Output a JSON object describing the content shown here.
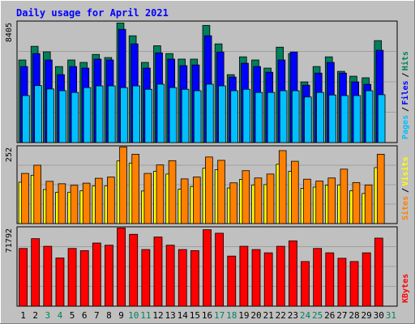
{
  "title": "Daily usage for April 2021",
  "colors": {
    "background": "#c0c0c0",
    "plot_background": "#c0c0c0",
    "title": "#0000ff",
    "hits": "#00805c",
    "files": "#0000ff",
    "pages": "#00c0ff",
    "visits": "#ffff00",
    "sites": "#ff8000",
    "kbytes": "#ff0000",
    "weekday_label": "#000000",
    "weekend_label": "#00805c"
  },
  "chart_data": [
    {
      "type": "bar",
      "panel": "hits-files-pages",
      "categories": [
        "1",
        "2",
        "3",
        "4",
        "5",
        "6",
        "7",
        "8",
        "9",
        "10",
        "11",
        "12",
        "13",
        "14",
        "15",
        "16",
        "17",
        "18",
        "19",
        "20",
        "21",
        "22",
        "23",
        "24",
        "25",
        "26",
        "27",
        "28",
        "29",
        "30",
        "31"
      ],
      "weekend_days": [
        "3",
        "4",
        "10",
        "11",
        "17",
        "18",
        "24",
        "25",
        "31"
      ],
      "max_label": "8405",
      "ylim": [
        0,
        8405
      ],
      "legend": [
        {
          "label": "Pages",
          "color": "#00c0ff"
        },
        {
          "label": "/",
          "color": "#000000"
        },
        {
          "label": "Files",
          "color": "#0000ff"
        },
        {
          "label": "/",
          "color": "#000000"
        },
        {
          "label": "Hits",
          "color": "#00805c"
        }
      ],
      "series": [
        {
          "name": "Hits",
          "values": [
            5800,
            6760,
            6370,
            5340,
            5800,
            5630,
            6190,
            5970,
            8400,
            7500,
            5630,
            6800,
            6250,
            5860,
            5860,
            8230,
            6930,
            4770,
            6020,
            5800,
            5230,
            6700,
            6250,
            4260,
            5340,
            6020,
            5000,
            4660,
            4550,
            7160,
            0
          ]
        },
        {
          "name": "Files",
          "values": [
            5340,
            6250,
            5800,
            4770,
            5340,
            5230,
            5860,
            5800,
            7950,
            6930,
            5230,
            6300,
            5860,
            5400,
            5450,
            7500,
            6360,
            4600,
            5570,
            5340,
            4940,
            5800,
            6360,
            4030,
            4880,
            5630,
            4880,
            4260,
            4090,
            6480,
            0
          ]
        },
        {
          "name": "Pages",
          "values": [
            3300,
            4000,
            3760,
            3640,
            3520,
            3860,
            3980,
            3980,
            3860,
            3980,
            3740,
            4100,
            3860,
            3740,
            3640,
            4100,
            3980,
            3640,
            3740,
            3520,
            3520,
            3640,
            3640,
            3200,
            3520,
            3340,
            3300,
            3300,
            3640,
            3360,
            0
          ]
        }
      ]
    },
    {
      "type": "bar",
      "panel": "visits-sites",
      "categories": [
        "1",
        "2",
        "3",
        "4",
        "5",
        "6",
        "7",
        "8",
        "9",
        "10",
        "11",
        "12",
        "13",
        "14",
        "15",
        "16",
        "17",
        "18",
        "19",
        "20",
        "21",
        "22",
        "23",
        "24",
        "25",
        "26",
        "27",
        "28",
        "29",
        "30",
        "31"
      ],
      "max_label": "252",
      "ylim": [
        0,
        252
      ],
      "legend": [
        {
          "label": "Sites",
          "color": "#ff8000"
        },
        {
          "label": "/",
          "color": "#000000"
        },
        {
          "label": "Visits",
          "color": "#ffff00"
        }
      ],
      "series": [
        {
          "name": "Sites",
          "values": [
            165,
            192,
            139,
            131,
            126,
            133,
            149,
            153,
            252,
            228,
            165,
            193,
            207,
            147,
            153,
            219,
            208,
            134,
            174,
            150,
            163,
            240,
            205,
            146,
            140,
            150,
            179,
            135,
            127,
            228,
            0
          ]
        },
        {
          "name": "Visits",
          "values": [
            136,
            159,
            112,
            103,
            103,
            108,
            124,
            124,
            206,
            199,
            107,
            172,
            163,
            113,
            122,
            182,
            177,
            117,
            145,
            127,
            128,
            195,
            172,
            116,
            120,
            126,
            127,
            108,
            99,
            184,
            0
          ]
        }
      ]
    },
    {
      "type": "bar",
      "panel": "kbytes",
      "categories": [
        "1",
        "2",
        "3",
        "4",
        "5",
        "6",
        "7",
        "8",
        "9",
        "10",
        "11",
        "12",
        "13",
        "14",
        "15",
        "16",
        "17",
        "18",
        "19",
        "20",
        "21",
        "22",
        "23",
        "24",
        "25",
        "26",
        "27",
        "28",
        "29",
        "30",
        "31"
      ],
      "max_label": "71792",
      "ylim": [
        0,
        71792
      ],
      "legend": [
        {
          "label": "KBytes",
          "color": "#ff0000"
        }
      ],
      "series": [
        {
          "name": "KBytes",
          "values": [
            53000,
            62000,
            55000,
            44300,
            53000,
            51000,
            58000,
            56000,
            71792,
            66000,
            52000,
            63500,
            56000,
            52000,
            51000,
            70200,
            67000,
            46000,
            55000,
            52000,
            49000,
            55000,
            60000,
            41000,
            53000,
            49000,
            44000,
            41000,
            49000,
            62500,
            0
          ]
        }
      ]
    }
  ]
}
